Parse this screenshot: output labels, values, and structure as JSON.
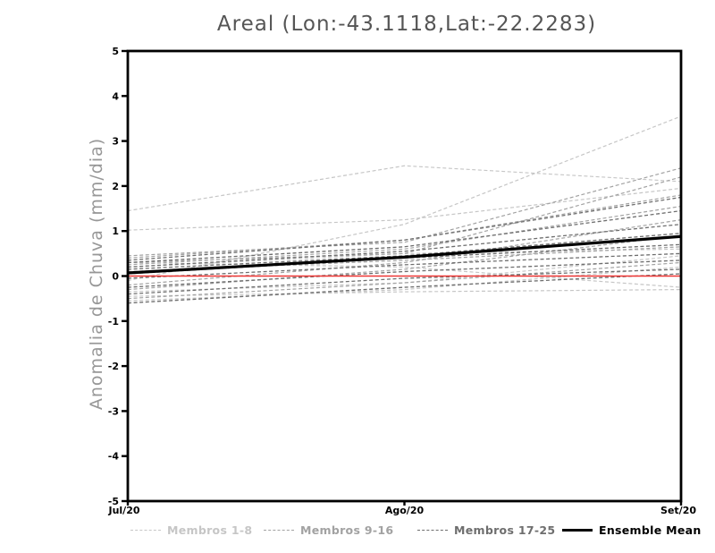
{
  "title": "Areal (Lon:-43.1118,Lat:-22.2283)",
  "axes": {
    "y_label": "Anomalia de Chuva (mm/dia)",
    "y_ticks": [
      5,
      4,
      3,
      2,
      1,
      0,
      -1,
      -2,
      -3,
      -4,
      -5
    ],
    "x_ticks": [
      "Jul/20",
      "Ago/20",
      "Set/20"
    ]
  },
  "legend": {
    "items": [
      {
        "label": "Membros 1-8",
        "color": "#c6c6c6",
        "style": "dashed"
      },
      {
        "label": "Membros 9-16",
        "color": "#a2a2a2",
        "style": "dashed"
      },
      {
        "label": "Membros 17-25",
        "color": "#6e6e6e",
        "style": "dashed"
      },
      {
        "label": "Ensemble Mean",
        "color": "#000000",
        "style": "solid"
      }
    ]
  },
  "chart_data": {
    "type": "line",
    "title": "Areal (Lon:-43.1118,Lat:-22.2283)",
    "ylabel": "Anomalia de Chuva (mm/dia)",
    "x": [
      "Jul/20",
      "Ago/20",
      "Set/20"
    ],
    "ylim": [
      -5,
      5
    ],
    "grid": false,
    "legend_position": "bottom",
    "groups": [
      {
        "name": "Membros 1-8",
        "color": "#c6c6c6",
        "dash": true,
        "width": 1.2,
        "members": [
          [
            1.45,
            2.45,
            2.1
          ],
          [
            1.02,
            1.25,
            1.95
          ],
          [
            -0.1,
            1.15,
            3.55
          ],
          [
            0.3,
            0.2,
            -0.25
          ],
          [
            -0.45,
            -0.35,
            -0.3
          ],
          [
            -0.35,
            -0.15,
            0.45
          ],
          [
            0.2,
            0.5,
            0.6
          ],
          [
            -0.55,
            -0.3,
            0.2
          ]
        ]
      },
      {
        "name": "Membros 9-16",
        "color": "#a2a2a2",
        "dash": true,
        "width": 1.2,
        "members": [
          [
            0.45,
            0.75,
            2.4
          ],
          [
            0.3,
            0.5,
            2.2
          ],
          [
            0.4,
            0.8,
            1.8
          ],
          [
            0.25,
            0.6,
            1.55
          ],
          [
            -0.2,
            0.3,
            1.25
          ],
          [
            -0.3,
            0.15,
            0.9
          ],
          [
            0.1,
            0.35,
            0.65
          ],
          [
            -0.5,
            -0.15,
            0.3
          ]
        ]
      },
      {
        "name": "Membros 17-25",
        "color": "#6e6e6e",
        "dash": true,
        "width": 1.3,
        "members": [
          [
            0.35,
            0.8,
            1.75
          ],
          [
            0.3,
            0.65,
            1.45
          ],
          [
            0.2,
            0.55,
            1.15
          ],
          [
            0.15,
            0.45,
            0.95
          ],
          [
            0.05,
            0.4,
            0.7
          ],
          [
            -0.05,
            0.25,
            0.5
          ],
          [
            -0.25,
            0.1,
            0.35
          ],
          [
            -0.4,
            -0.05,
            0.15
          ],
          [
            -0.6,
            -0.25,
            0.05
          ]
        ]
      },
      {
        "name": "Zero line",
        "color": "#ee3533",
        "dash": false,
        "width": 1.6,
        "members": [
          [
            0,
            0,
            0
          ]
        ]
      },
      {
        "name": "Ensemble Mean",
        "color": "#000000",
        "dash": false,
        "width": 3.2,
        "members": [
          [
            0.07,
            0.42,
            0.88
          ]
        ]
      }
    ]
  }
}
